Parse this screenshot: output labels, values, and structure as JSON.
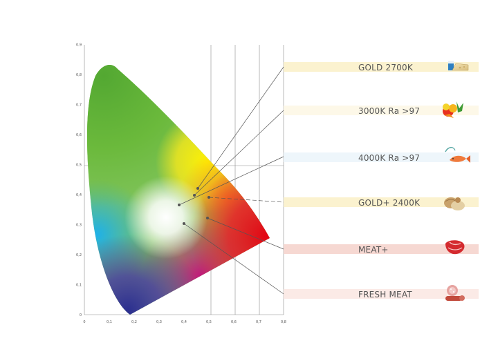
{
  "diagram": {
    "x_ticks": [
      "0",
      "0,1",
      "0,2",
      "0,3",
      "0,4",
      "0,5",
      "0,6",
      "0,7",
      "0,8"
    ],
    "y_ticks": [
      "0",
      "0,1",
      "0,2",
      "0,3",
      "0,4",
      "0,5",
      "0,6",
      "0,7",
      "0,8",
      "0,9"
    ],
    "light_points": [
      {
        "name": "gold-2700k",
        "x": 0.46,
        "y": 0.42
      },
      {
        "name": "3000k",
        "x": 0.44,
        "y": 0.4
      },
      {
        "name": "4000k",
        "x": 0.38,
        "y": 0.37
      },
      {
        "name": "gold-plus-2400k",
        "x": 0.5,
        "y": 0.395
      },
      {
        "name": "meat-plus",
        "x": 0.5,
        "y": 0.325
      },
      {
        "name": "fresh-meat",
        "x": 0.4,
        "y": 0.31
      }
    ]
  },
  "legend": [
    {
      "label": "GOLD 2700K",
      "band_color": "#fbf2cf",
      "icon": "cheese-and-milk-icon"
    },
    {
      "label": "3000K Ra  >97",
      "band_color": "#fdf8e8",
      "icon": "fruit-and-vegetables-icon"
    },
    {
      "label": "4000K Ra  >97",
      "band_color": "#eef6fb",
      "icon": "fish-icon"
    },
    {
      "label": "GOLD+ 2400K",
      "band_color": "#fbf2cf",
      "icon": "bread-icon"
    },
    {
      "label": "MEAT+",
      "band_color": "#f6d8d2",
      "icon": "meat-icon"
    },
    {
      "label": "FRESH MEAT",
      "band_color": "#fbeae6",
      "icon": "sausage-and-ham-icon"
    }
  ]
}
